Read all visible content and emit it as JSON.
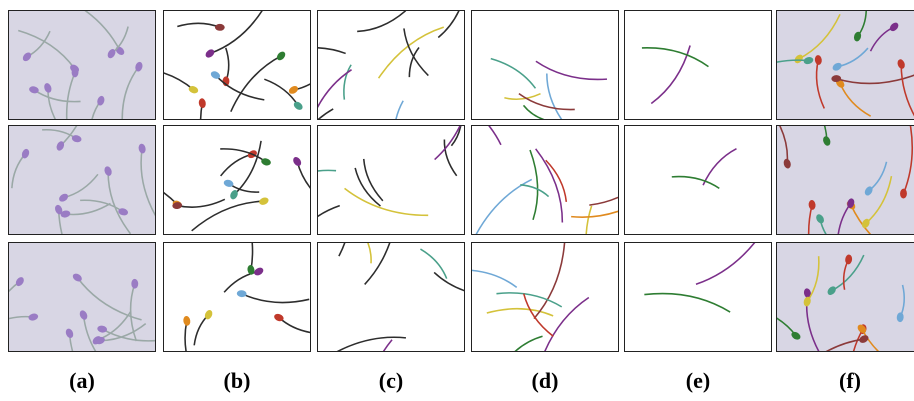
{
  "figure": {
    "columns": [
      {
        "label": "(a)",
        "style": "raw",
        "bg": "#d8d6e4"
      },
      {
        "label": "(b)",
        "style": "mask",
        "bg": "#ffffff"
      },
      {
        "label": "(c)",
        "style": "mask",
        "bg": "#ffffff"
      },
      {
        "label": "(d)",
        "style": "mask",
        "bg": "#ffffff"
      },
      {
        "label": "(e)",
        "style": "mask",
        "bg": "#ffffff"
      },
      {
        "label": "(f)",
        "style": "overlay",
        "bg": "#d8d6e4"
      }
    ],
    "rows": 3,
    "colors": {
      "raw_head": "#9a7cc4",
      "raw_tail": "#9aa8a6",
      "mask_tail": "#2d2d2d",
      "palette": [
        "#c0392b",
        "#e08a1e",
        "#7b2f8a",
        "#2e7d32",
        "#d4c23a",
        "#6fa8d6",
        "#8b3a3a",
        "#4aa08a"
      ]
    }
  }
}
